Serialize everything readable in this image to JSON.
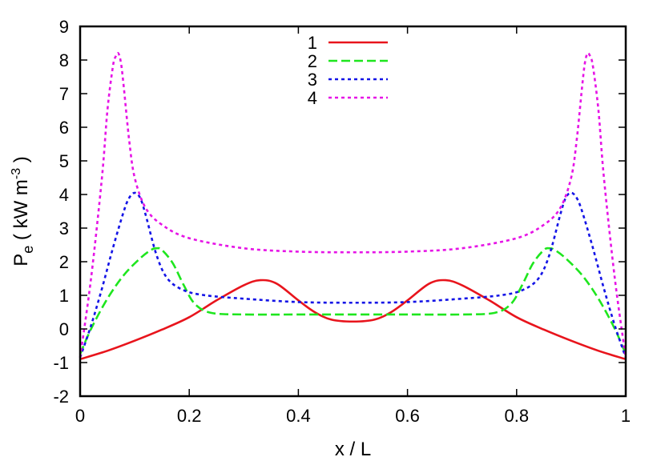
{
  "chart_data": {
    "type": "line",
    "title": "",
    "xlabel": "x / L",
    "ylabel": {
      "main": "P",
      "subscript": "e",
      "unit_open": " ( kW m",
      "unit_sup": "-3",
      "unit_close": " )"
    },
    "xlim": [
      0,
      1
    ],
    "ylim": [
      -2,
      9
    ],
    "xticks": [
      "0",
      "0.2",
      "0.4",
      "0.6",
      "0.8",
      "1"
    ],
    "yticks": [
      "-2",
      "-1",
      "0",
      "1",
      "2",
      "3",
      "4",
      "5",
      "6",
      "7",
      "8",
      "9"
    ],
    "grid": false,
    "legend_position": "top-center",
    "series": [
      {
        "name": "1",
        "color": "#e8141c",
        "dash": "solid",
        "x": [
          0,
          0.05,
          0.1,
          0.15,
          0.2,
          0.25,
          0.3,
          0.33,
          0.36,
          0.4,
          0.43,
          0.46,
          0.5,
          0.54,
          0.57,
          0.6,
          0.64,
          0.67,
          0.7,
          0.75,
          0.8,
          0.85,
          0.9,
          0.95,
          1
        ],
        "y": [
          -0.9,
          -0.65,
          -0.35,
          -0.02,
          0.35,
          0.85,
          1.3,
          1.45,
          1.35,
          0.85,
          0.5,
          0.28,
          0.22,
          0.28,
          0.5,
          0.85,
          1.35,
          1.45,
          1.3,
          0.85,
          0.35,
          -0.02,
          -0.35,
          -0.65,
          -0.9
        ]
      },
      {
        "name": "2",
        "color": "#1ee61e",
        "dash": "dashed",
        "x": [
          0,
          0.02,
          0.05,
          0.08,
          0.11,
          0.13,
          0.14,
          0.15,
          0.17,
          0.19,
          0.21,
          0.24,
          0.3,
          0.4,
          0.5,
          0.6,
          0.7,
          0.76,
          0.79,
          0.81,
          0.83,
          0.85,
          0.86,
          0.87,
          0.89,
          0.92,
          0.95,
          0.98,
          1
        ],
        "y": [
          -0.75,
          0.0,
          0.9,
          1.6,
          2.1,
          2.35,
          2.4,
          2.35,
          1.95,
          1.3,
          0.75,
          0.48,
          0.43,
          0.43,
          0.43,
          0.43,
          0.43,
          0.48,
          0.75,
          1.3,
          1.95,
          2.35,
          2.4,
          2.35,
          2.1,
          1.6,
          0.9,
          0.0,
          -0.75
        ]
      },
      {
        "name": "3",
        "color": "#1414e6",
        "dash": "dotted",
        "x": [
          0,
          0.02,
          0.04,
          0.06,
          0.08,
          0.09,
          0.1,
          0.11,
          0.12,
          0.14,
          0.16,
          0.19,
          0.23,
          0.3,
          0.4,
          0.5,
          0.6,
          0.7,
          0.77,
          0.81,
          0.84,
          0.86,
          0.88,
          0.89,
          0.9,
          0.91,
          0.92,
          0.94,
          0.96,
          0.98,
          1
        ],
        "y": [
          -0.85,
          0.1,
          1.2,
          2.4,
          3.5,
          3.9,
          4.05,
          3.9,
          3.4,
          2.2,
          1.5,
          1.15,
          1.0,
          0.9,
          0.8,
          0.78,
          0.8,
          0.9,
          1.0,
          1.15,
          1.5,
          2.2,
          3.4,
          3.9,
          4.05,
          3.9,
          3.5,
          2.4,
          1.2,
          0.1,
          -0.85
        ]
      },
      {
        "name": "4",
        "color": "#e614e6",
        "dash": "dotted",
        "x": [
          0,
          0.02,
          0.04,
          0.05,
          0.06,
          0.065,
          0.07,
          0.075,
          0.08,
          0.09,
          0.1,
          0.12,
          0.15,
          0.2,
          0.3,
          0.4,
          0.5,
          0.6,
          0.7,
          0.8,
          0.85,
          0.88,
          0.9,
          0.91,
          0.92,
          0.925,
          0.93,
          0.935,
          0.94,
          0.95,
          0.96,
          0.98,
          1
        ],
        "y": [
          -0.85,
          1.5,
          4.5,
          6.5,
          7.8,
          8.1,
          8.2,
          7.9,
          7.2,
          5.6,
          4.5,
          3.6,
          3.1,
          2.7,
          2.4,
          2.3,
          2.28,
          2.3,
          2.4,
          2.7,
          3.1,
          3.6,
          4.5,
          5.6,
          7.2,
          7.9,
          8.2,
          8.1,
          7.8,
          6.5,
          4.5,
          1.5,
          -0.85
        ]
      }
    ]
  }
}
